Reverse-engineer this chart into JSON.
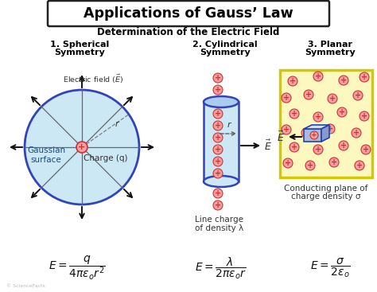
{
  "title": "Applications of Gauss’ Law",
  "subtitle": "Determination of the Electric Field",
  "section1_line1": "1. Spherical",
  "section1_line2": "Symmetry",
  "section2_line1": "2. Cylindrical",
  "section2_line2": "Symmetry",
  "section3_line1": "3. Planar",
  "section3_line2": "Symmetry",
  "bg_color": "#ffffff",
  "circle_fill": "#cce8f4",
  "circle_edge": "#3344bb",
  "cylinder_fill": "#cce8f4",
  "cylinder_edge": "#3344bb",
  "plane_fill": "#fdf8c0",
  "plane_border": "#d4c800",
  "plus_fill": "#f4a0a0",
  "plus_edge": "#cc3333",
  "plus_text": "#cc3333",
  "arrow_color": "#111111",
  "label_gaussian": "Gaussian\nsurface",
  "label_charge": "Charge (q)",
  "label_r": "r",
  "label_efield_top": "Electric field (",
  "label_linecharge1": "Line charge",
  "label_linecharge2": "of density λ",
  "label_planecharge1": "Conducting plane of",
  "label_planecharge2": "charge density σ",
  "gray_line": "#aaaaaa",
  "sector_line": "#666666"
}
